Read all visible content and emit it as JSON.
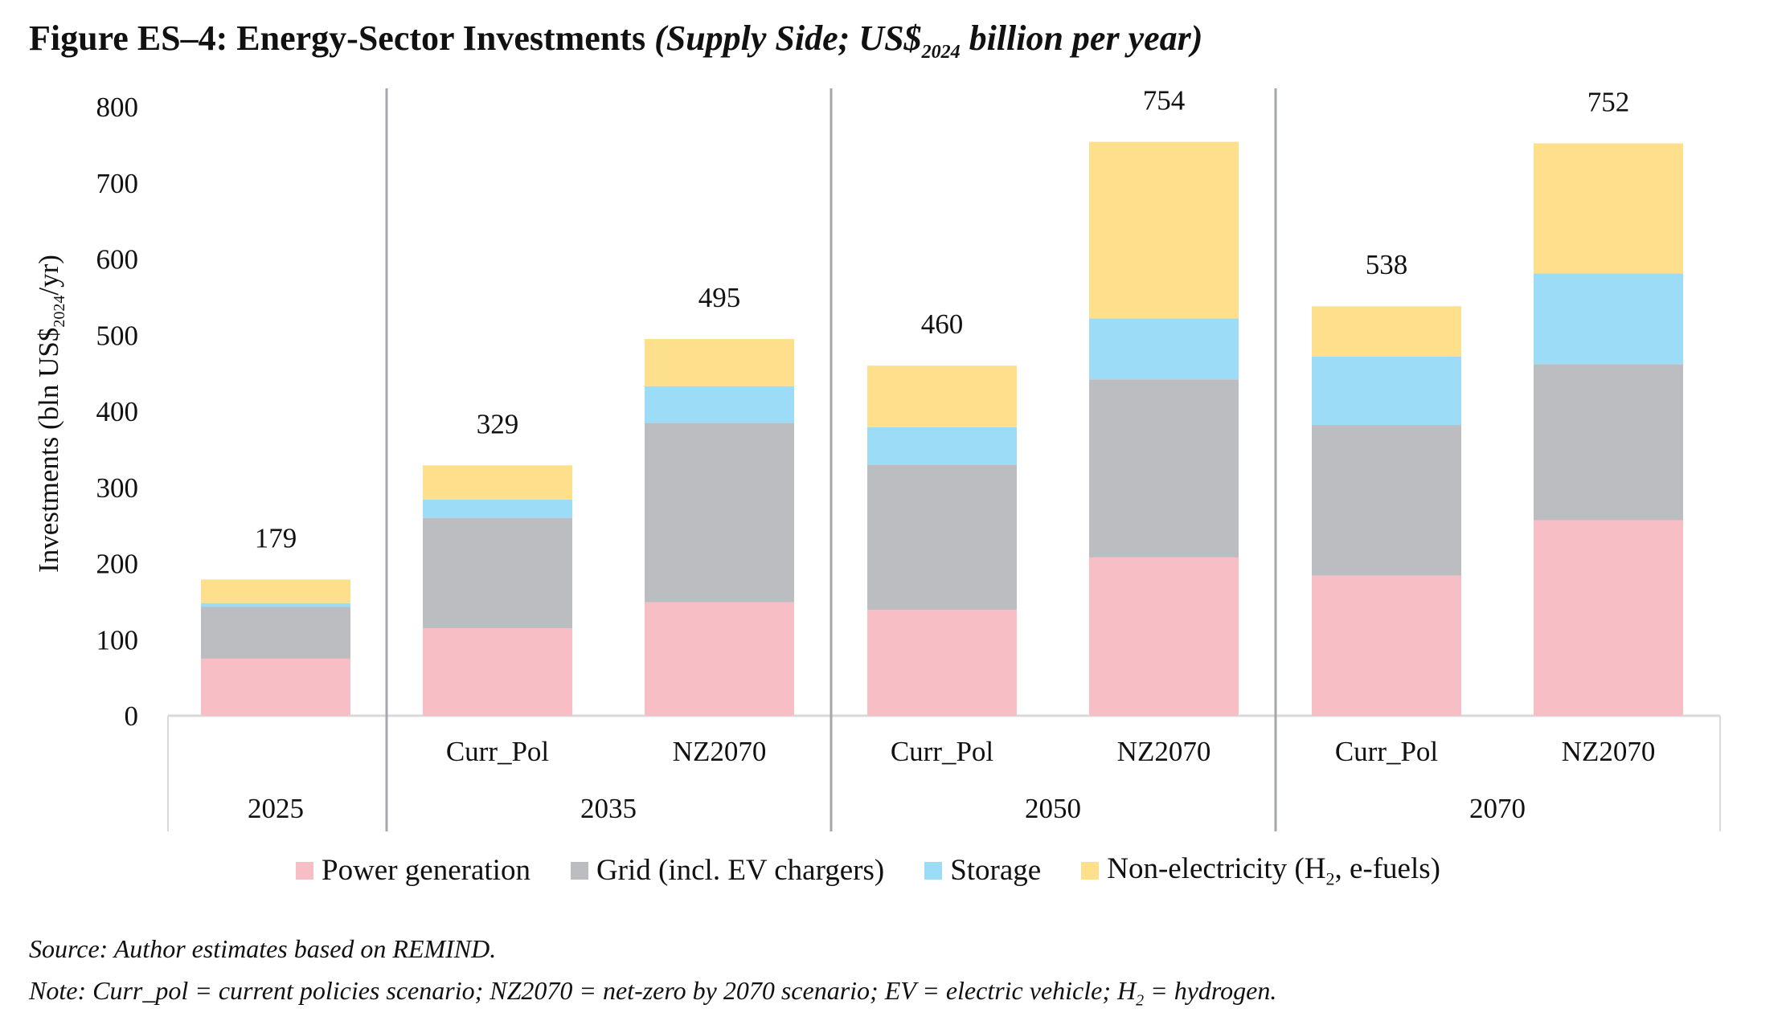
{
  "title": {
    "bold": "Figure ES–4: Energy-Sector Investments",
    "italic_pre": "(Supply Side; US$",
    "italic_sub": "2024",
    "italic_post": " billion per year)"
  },
  "chart_data": {
    "type": "bar",
    "stacked": true,
    "title": "Figure ES–4: Energy-Sector Investments (Supply Side; US$2024 billion per year)",
    "ylabel": "Investments (bln US$2024/yr)",
    "ylabel_parts": {
      "pre": "Investments (bln US$",
      "sub": "2024",
      "post": "/yr)"
    },
    "xlabel": "",
    "ylim": [
      0,
      800
    ],
    "yticks": [
      0,
      100,
      200,
      300,
      400,
      500,
      600,
      700,
      800
    ],
    "grid": false,
    "legend_position": "bottom",
    "groups": [
      {
        "label": "2025",
        "categories": [
          ""
        ]
      },
      {
        "label": "2035",
        "categories": [
          "Curr_Pol",
          "NZ2070"
        ]
      },
      {
        "label": "2050",
        "categories": [
          "Curr_Pol",
          "NZ2070"
        ]
      },
      {
        "label": "2070",
        "categories": [
          "Curr_Pol",
          "NZ2070"
        ]
      }
    ],
    "categories": [
      "2025",
      "2035 Curr_Pol",
      "2035 NZ2070",
      "2050 Curr_Pol",
      "2050 NZ2070",
      "2070 Curr_Pol",
      "2070 NZ2070"
    ],
    "series": [
      {
        "name": "Power generation",
        "color": "#F8BEC6",
        "values": [
          75,
          115,
          149,
          139,
          208,
          184,
          257
        ]
      },
      {
        "name": "Grid (incl. EV chargers)",
        "color": "#BCBDC0",
        "values": [
          68,
          145,
          236,
          191,
          234,
          198,
          205
        ]
      },
      {
        "name": "Storage",
        "color": "#9DDCF7",
        "values": [
          5,
          24,
          48,
          49,
          80,
          90,
          119
        ]
      },
      {
        "name": "Non-electricity (H2, e-fuels)",
        "color": "#FEDF8C",
        "values": [
          31,
          45,
          62,
          81,
          232,
          66,
          171
        ]
      }
    ],
    "totals": [
      179,
      329,
      495,
      460,
      754,
      538,
      752
    ],
    "total_labels": [
      "179",
      "329",
      "495",
      "460",
      "754",
      "538",
      "752"
    ]
  },
  "legend": [
    {
      "label": "Power generation",
      "color": "#F8BEC6"
    },
    {
      "label": "Grid (incl. EV chargers)",
      "color": "#BCBDC0"
    },
    {
      "label": "Storage",
      "color": "#9DDCF7"
    },
    {
      "label_pre": "Non-electricity (H",
      "label_sub": "2",
      "label_post": ", e-fuels)",
      "color": "#FEDF8C"
    }
  ],
  "footnotes": {
    "source": "Source: Author estimates based on REMIND.",
    "note_pre": "Note: Curr_pol = current policies scenario; NZ2070 = net-zero by 2070 scenario; EV = electric vehicle; H",
    "note_sub": "2",
    "note_post": " = hydrogen."
  }
}
